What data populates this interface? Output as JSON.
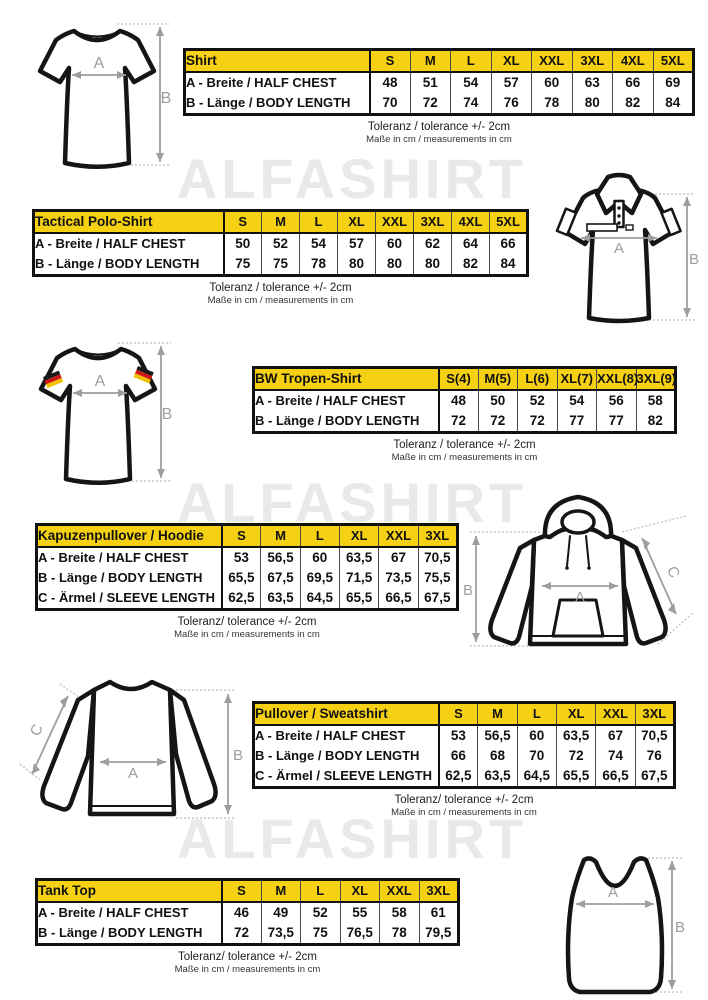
{
  "watermark": {
    "text": "ALFASHIRT"
  },
  "measure_labels": {
    "a": "A",
    "b": "B",
    "c": "C"
  },
  "colors": {
    "header_yellow": "#F5D013",
    "table_border": "#111111",
    "arrow_gray": "#9e9e9e",
    "watermark_gray": "#e9e9e9",
    "flag_black": "#1a1a1a",
    "flag_red": "#cf1717",
    "flag_gold": "#f2c100"
  },
  "tables": [
    {
      "id": "shirt",
      "title": "Shirt",
      "sizes": [
        "S",
        "M",
        "L",
        "XL",
        "XXL",
        "3XL",
        "4XL",
        "5XL"
      ],
      "rows": [
        {
          "label": "A - Breite / HALF CHEST",
          "values": [
            "48",
            "51",
            "54",
            "57",
            "60",
            "63",
            "66",
            "69"
          ]
        },
        {
          "label": "B - Länge / BODY LENGTH",
          "values": [
            "70",
            "72",
            "74",
            "76",
            "78",
            "80",
            "82",
            "84"
          ]
        }
      ],
      "tolerance": "Toleranz / tolerance +/- 2cm",
      "units": "Maße in cm / measurements in cm"
    },
    {
      "id": "tactical-polo",
      "title": "Tactical Polo-Shirt",
      "sizes": [
        "S",
        "M",
        "L",
        "XL",
        "XXL",
        "3XL",
        "4XL",
        "5XL"
      ],
      "rows": [
        {
          "label": "A - Breite / HALF CHEST",
          "values": [
            "50",
            "52",
            "54",
            "57",
            "60",
            "62",
            "64",
            "66"
          ]
        },
        {
          "label": "B - Länge / BODY LENGTH",
          "values": [
            "75",
            "75",
            "78",
            "80",
            "80",
            "80",
            "82",
            "84"
          ]
        }
      ],
      "tolerance": "Toleranz / tolerance +/- 2cm",
      "units": "Maße in cm / measurements in cm"
    },
    {
      "id": "bw-tropen-shirt",
      "title": "BW Tropen-Shirt",
      "sizes": [
        "S(4)",
        "M(5)",
        "L(6)",
        "XL(7)",
        "XXL(8)",
        "3XL(9)"
      ],
      "rows": [
        {
          "label": "A - Breite / HALF CHEST",
          "values": [
            "48",
            "50",
            "52",
            "54",
            "56",
            "58"
          ]
        },
        {
          "label": "B - Länge / BODY LENGTH",
          "values": [
            "72",
            "72",
            "72",
            "77",
            "77",
            "82"
          ]
        }
      ],
      "tolerance": "Toleranz / tolerance +/- 2cm",
      "units": "Maße in cm / measurements in cm"
    },
    {
      "id": "hoodie",
      "title": "Kapuzenpullover / Hoodie",
      "sizes": [
        "S",
        "M",
        "L",
        "XL",
        "XXL",
        "3XL"
      ],
      "rows": [
        {
          "label": "A - Breite / HALF CHEST",
          "values": [
            "53",
            "56,5",
            "60",
            "63,5",
            "67",
            "70,5"
          ]
        },
        {
          "label": "B - Länge / BODY LENGTH",
          "values": [
            "65,5",
            "67,5",
            "69,5",
            "71,5",
            "73,5",
            "75,5"
          ]
        },
        {
          "label": "C - Ärmel / SLEEVE LENGTH",
          "values": [
            "62,5",
            "63,5",
            "64,5",
            "65,5",
            "66,5",
            "67,5"
          ]
        }
      ],
      "tolerance": "Toleranz/ tolerance +/- 2cm",
      "units": "Maße in cm / measurements in cm"
    },
    {
      "id": "pullover-sweatshirt",
      "title": "Pullover / Sweatshirt",
      "sizes": [
        "S",
        "M",
        "L",
        "XL",
        "XXL",
        "3XL"
      ],
      "rows": [
        {
          "label": "A - Breite / HALF CHEST",
          "values": [
            "53",
            "56,5",
            "60",
            "63,5",
            "67",
            "70,5"
          ]
        },
        {
          "label": "B - Länge / BODY LENGTH",
          "values": [
            "66",
            "68",
            "70",
            "72",
            "74",
            "76"
          ]
        },
        {
          "label": "C - Ärmel / SLEEVE LENGTH",
          "values": [
            "62,5",
            "63,5",
            "64,5",
            "65,5",
            "66,5",
            "67,5"
          ]
        }
      ],
      "tolerance": "Toleranz/ tolerance +/- 2cm",
      "units": "Maße in cm / measurements in cm"
    },
    {
      "id": "tank-top",
      "title": "Tank Top",
      "sizes": [
        "S",
        "M",
        "L",
        "XL",
        "XXL",
        "3XL"
      ],
      "rows": [
        {
          "label": "A - Breite / HALF CHEST",
          "values": [
            "46",
            "49",
            "52",
            "55",
            "58",
            "61"
          ]
        },
        {
          "label": "B - Länge / BODY LENGTH",
          "values": [
            "72",
            "73,5",
            "75",
            "76,5",
            "78",
            "79,5"
          ]
        }
      ],
      "tolerance": "Toleranz/ tolerance +/- 2cm",
      "units": "Maße in cm / measurements in cm"
    }
  ]
}
